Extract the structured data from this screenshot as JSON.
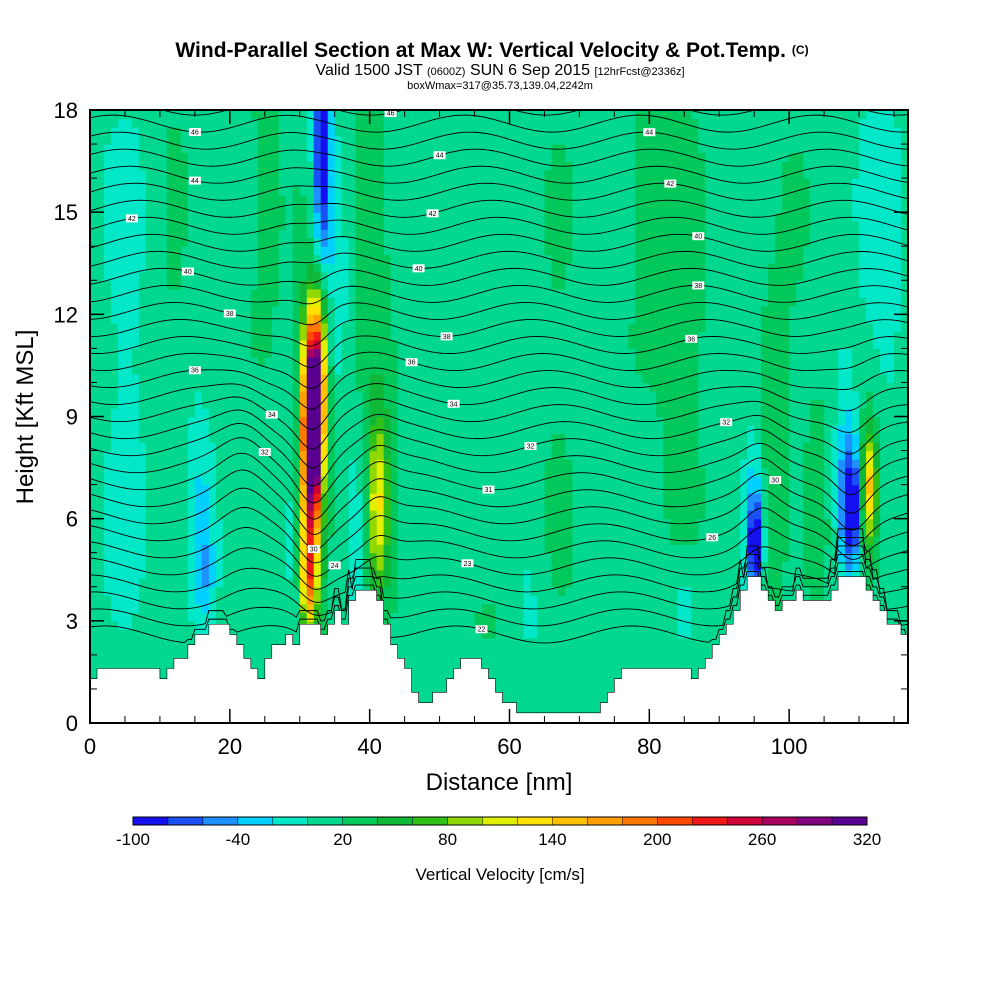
{
  "chart_data": {
    "type": "heatmap",
    "title": "Wind-Parallel Section at Max W: Vertical Velocity & Pot.Temp.",
    "title_mark": "(C)",
    "subtitle_main_a": "Valid 1500 JST",
    "subtitle_small_a": "(0600Z)",
    "subtitle_main_b": "SUN 6 Sep 2015",
    "subtitle_small_b": "[12hrFcst@2336z]",
    "subtitle_line3": "boxWmax=317@35.73,139.04,2242m",
    "xlabel": "Distance [nm]",
    "ylabel": "Height [Kft MSL]",
    "xlim": [
      0,
      117
    ],
    "ylim": [
      0,
      18
    ],
    "x_ticks": [
      0,
      20,
      40,
      60,
      80,
      100
    ],
    "y_ticks": [
      0,
      3,
      6,
      9,
      12,
      15,
      18
    ],
    "x_tick_labels": [
      "0",
      "20",
      "40",
      "60",
      "80",
      "100"
    ],
    "y_tick_labels": [
      "0",
      "3",
      "6",
      "9",
      "12",
      "15",
      "18"
    ],
    "colorbar": {
      "label": "Vertical Velocity [cm/s]",
      "min": -100,
      "max": 320,
      "step": 20,
      "tick_values": [
        "-100",
        "-40",
        "20",
        "80",
        "140",
        "200",
        "260",
        "320"
      ],
      "colors": [
        "#1410ef",
        "#1a4ff5",
        "#1e90ff",
        "#00d0ff",
        "#00e8c8",
        "#00d890",
        "#00c85a",
        "#10b838",
        "#30c018",
        "#90d800",
        "#e0f000",
        "#ffe000",
        "#ffc000",
        "#ffa000",
        "#ff7800",
        "#ff4800",
        "#f01818",
        "#d00038",
        "#a80060",
        "#800080",
        "#5a0090"
      ]
    },
    "terrain_kft": [
      [
        0,
        1.3
      ],
      [
        1,
        1.3
      ],
      [
        1,
        1.6
      ],
      [
        10,
        1.6
      ],
      [
        10,
        1.3
      ],
      [
        11,
        1.3
      ],
      [
        11,
        1.6
      ],
      [
        12,
        1.6
      ],
      [
        12,
        1.9
      ],
      [
        14,
        1.9
      ],
      [
        14,
        2.3
      ],
      [
        15,
        2.3
      ],
      [
        15,
        2.6
      ],
      [
        17,
        2.6
      ],
      [
        17,
        2.9
      ],
      [
        20,
        2.9
      ],
      [
        20,
        2.6
      ],
      [
        21,
        2.6
      ],
      [
        21,
        2.3
      ],
      [
        22,
        2.3
      ],
      [
        22,
        1.9
      ],
      [
        23,
        1.9
      ],
      [
        23,
        1.6
      ],
      [
        24,
        1.6
      ],
      [
        24,
        1.3
      ],
      [
        25,
        1.3
      ],
      [
        25,
        1.9
      ],
      [
        26,
        1.9
      ],
      [
        26,
        2.3
      ],
      [
        28,
        2.3
      ],
      [
        28,
        2.6
      ],
      [
        29,
        2.6
      ],
      [
        29,
        2.3
      ],
      [
        30,
        2.3
      ],
      [
        30,
        2.9
      ],
      [
        33,
        2.9
      ],
      [
        33,
        2.6
      ],
      [
        34,
        2.6
      ],
      [
        34,
        2.9
      ],
      [
        35,
        2.9
      ],
      [
        35,
        3.3
      ],
      [
        36,
        3.3
      ],
      [
        36,
        2.9
      ],
      [
        37,
        2.9
      ],
      [
        37,
        3.6
      ],
      [
        38,
        3.6
      ],
      [
        38,
        3.9
      ],
      [
        41,
        3.9
      ],
      [
        41,
        3.6
      ],
      [
        42,
        3.6
      ],
      [
        42,
        2.9
      ],
      [
        43,
        2.9
      ],
      [
        43,
        2.3
      ],
      [
        44,
        2.3
      ],
      [
        44,
        1.9
      ],
      [
        45,
        1.9
      ],
      [
        45,
        1.6
      ],
      [
        46,
        1.6
      ],
      [
        46,
        0.9
      ],
      [
        47,
        0.9
      ],
      [
        47,
        0.6
      ],
      [
        49,
        0.6
      ],
      [
        49,
        0.9
      ],
      [
        51,
        0.9
      ],
      [
        51,
        1.3
      ],
      [
        52,
        1.3
      ],
      [
        52,
        1.6
      ],
      [
        53,
        1.6
      ],
      [
        53,
        1.9
      ],
      [
        56,
        1.9
      ],
      [
        56,
        1.6
      ],
      [
        57,
        1.6
      ],
      [
        57,
        1.3
      ],
      [
        58,
        1.3
      ],
      [
        58,
        0.9
      ],
      [
        59,
        0.9
      ],
      [
        59,
        0.6
      ],
      [
        61,
        0.6
      ],
      [
        61,
        0.3
      ],
      [
        73,
        0.3
      ],
      [
        73,
        0.6
      ],
      [
        74,
        0.6
      ],
      [
        74,
        0.9
      ],
      [
        75,
        0.9
      ],
      [
        75,
        1.3
      ],
      [
        76,
        1.3
      ],
      [
        76,
        1.6
      ],
      [
        86,
        1.6
      ],
      [
        86,
        1.3
      ],
      [
        87,
        1.3
      ],
      [
        87,
        1.6
      ],
      [
        88,
        1.6
      ],
      [
        88,
        1.9
      ],
      [
        89,
        1.9
      ],
      [
        89,
        2.3
      ],
      [
        90,
        2.3
      ],
      [
        90,
        2.6
      ],
      [
        91,
        2.6
      ],
      [
        91,
        2.9
      ],
      [
        92,
        2.9
      ],
      [
        92,
        3.3
      ],
      [
        93,
        3.3
      ],
      [
        93,
        3.9
      ],
      [
        94,
        3.9
      ],
      [
        94,
        4.3
      ],
      [
        96,
        4.3
      ],
      [
        96,
        3.9
      ],
      [
        97,
        3.9
      ],
      [
        97,
        3.6
      ],
      [
        98,
        3.6
      ],
      [
        98,
        3.3
      ],
      [
        99,
        3.3
      ],
      [
        99,
        3.6
      ],
      [
        101,
        3.6
      ],
      [
        101,
        3.9
      ],
      [
        102,
        3.9
      ],
      [
        102,
        3.6
      ],
      [
        106,
        3.6
      ],
      [
        106,
        3.9
      ],
      [
        107,
        3.9
      ],
      [
        107,
        4.3
      ],
      [
        111,
        4.3
      ],
      [
        111,
        3.9
      ],
      [
        112,
        3.9
      ],
      [
        112,
        3.6
      ],
      [
        113,
        3.6
      ],
      [
        113,
        3.3
      ],
      [
        114,
        3.3
      ],
      [
        114,
        2.9
      ],
      [
        116,
        2.9
      ],
      [
        116,
        2.6
      ],
      [
        117,
        2.6
      ],
      [
        117,
        0
      ]
    ],
    "vertical_velocity_features": [
      {
        "x": 32,
        "y": 8.7,
        "sx": 0.9,
        "sy": 1.4,
        "w": 300
      },
      {
        "x": 31.6,
        "y": 6.5,
        "sx": 1.0,
        "sy": 2.2,
        "w": 150
      },
      {
        "x": 32.2,
        "y": 10.2,
        "sx": 1.0,
        "sy": 1.4,
        "w": 170
      },
      {
        "x": 32.6,
        "y": 11.8,
        "sx": 1.3,
        "sy": 1.2,
        "w": 60
      },
      {
        "x": 31.2,
        "y": 4.2,
        "sx": 0.6,
        "sy": 0.9,
        "w": 100
      },
      {
        "x": 31,
        "y": 7.5,
        "sx": 2.0,
        "sy": 4.5,
        "w": 40
      },
      {
        "x": 41.2,
        "y": 6.4,
        "sx": 1.0,
        "sy": 1.7,
        "w": 90
      },
      {
        "x": 41.5,
        "y": 6.0,
        "sx": 2.0,
        "sy": 3.0,
        "w": 30
      },
      {
        "x": 33.2,
        "y": 17.0,
        "sx": 0.8,
        "sy": 1.8,
        "w": -95
      },
      {
        "x": 33.5,
        "y": 14.5,
        "sx": 1.2,
        "sy": 3.5,
        "w": -45
      },
      {
        "x": 35.8,
        "y": 13.0,
        "sx": 0.8,
        "sy": 2.0,
        "w": -25
      },
      {
        "x": 29.0,
        "y": 5.8,
        "sx": 1.0,
        "sy": 2.5,
        "w": -35
      },
      {
        "x": 38.0,
        "y": 5.5,
        "sx": 1.0,
        "sy": 2.5,
        "w": -25
      },
      {
        "x": 15.8,
        "y": 5.9,
        "sx": 1.4,
        "sy": 1.8,
        "w": -40
      },
      {
        "x": 16.5,
        "y": 4.2,
        "sx": 1.0,
        "sy": 1.0,
        "w": -30
      },
      {
        "x": 109,
        "y": 6.3,
        "sx": 1.0,
        "sy": 1.2,
        "w": -110
      },
      {
        "x": 108.5,
        "y": 7.3,
        "sx": 1.3,
        "sy": 2.2,
        "w": -45
      },
      {
        "x": 95.2,
        "y": 5.3,
        "sx": 0.7,
        "sy": 1.0,
        "w": -90
      },
      {
        "x": 95.0,
        "y": 6.0,
        "sx": 1.0,
        "sy": 2.0,
        "w": -40
      },
      {
        "x": 111.4,
        "y": 6.9,
        "sx": 0.8,
        "sy": 1.0,
        "w": 110
      },
      {
        "x": 111.0,
        "y": 6.5,
        "sx": 1.5,
        "sy": 2.5,
        "w": 45
      },
      {
        "x": 97.5,
        "y": 7.0,
        "sx": 1.5,
        "sy": 3.5,
        "w": 30
      },
      {
        "x": 104.0,
        "y": 7.5,
        "sx": 1.5,
        "sy": 3.5,
        "w": 20
      },
      {
        "x": 85.0,
        "y": 11.5,
        "sx": 2.5,
        "sy": 5.0,
        "w": 25
      },
      {
        "x": 80.0,
        "y": 15.5,
        "sx": 2.5,
        "sy": 4.0,
        "w": 20
      },
      {
        "x": 40.0,
        "y": 15.0,
        "sx": 2.5,
        "sy": 4.0,
        "w": 22
      },
      {
        "x": 25.0,
        "y": 16.0,
        "sx": 2.0,
        "sy": 4.0,
        "w": 20
      },
      {
        "x": 67.0,
        "y": 10.0,
        "sx": 2.5,
        "sy": 6.0,
        "w": 15
      },
      {
        "x": 63.0,
        "y": 3.4,
        "sx": 1.5,
        "sy": 1.3,
        "w": -15
      },
      {
        "x": 85.0,
        "y": 3.6,
        "sx": 1.2,
        "sy": 1.0,
        "w": -25
      },
      {
        "x": 5.0,
        "y": 10.0,
        "sx": 2.5,
        "sy": 6.0,
        "w": -15
      },
      {
        "x": 12.0,
        "y": 14.0,
        "sx": 1.5,
        "sy": 4.0,
        "w": 15
      },
      {
        "x": 100.0,
        "y": 14.0,
        "sx": 2.0,
        "sy": 3.0,
        "w": 15
      },
      {
        "x": 113.0,
        "y": 13.5,
        "sx": 2.0,
        "sy": 4.0,
        "w": -25
      },
      {
        "x": 57.0,
        "y": 3.2,
        "sx": 3.0,
        "sy": 1.0,
        "w": 15
      }
    ],
    "potential_temperature_contours": [
      {
        "level_idx": 0,
        "y0": 2.6,
        "label": "22",
        "label_x": 56
      },
      {
        "level_idx": 1,
        "y0": 3.1
      },
      {
        "level_idx": 2,
        "y0": 3.6
      },
      {
        "level_idx": 3,
        "y0": 4.1
      },
      {
        "level_idx": 4,
        "y0": 4.6,
        "label": "23",
        "label_x": 54
      },
      {
        "level_idx": 5,
        "y0": 5.1,
        "label": "24",
        "label_x": 35
      },
      {
        "level_idx": 6,
        "y0": 5.6,
        "label": "26",
        "label_x": 89
      },
      {
        "level_idx": 7,
        "y0": 6.1,
        "label": "30",
        "label_x": 32
      },
      {
        "level_idx": 8,
        "y0": 6.6,
        "label": "30",
        "label_x": 98
      },
      {
        "level_idx": 9,
        "y0": 7.1,
        "label": "31",
        "label_x": 57
      },
      {
        "level_idx": 10,
        "y0": 7.6,
        "label": "32",
        "label_x": 25
      },
      {
        "level_idx": 11,
        "y0": 8.1,
        "label": "32",
        "label_x": 63
      },
      {
        "level_idx": 12,
        "y0": 8.6,
        "label": "32",
        "label_x": 91
      },
      {
        "level_idx": 13,
        "y0": 9.1,
        "label": "34",
        "label_x": 26
      },
      {
        "level_idx": 14,
        "y0": 9.6,
        "label": "34",
        "label_x": 52
      },
      {
        "level_idx": 15,
        "y0": 10.1,
        "label": "36",
        "label_x": 15
      },
      {
        "level_idx": 16,
        "y0": 10.6,
        "label": "36",
        "label_x": 46
      },
      {
        "level_idx": 17,
        "y0": 11.1,
        "label": "36",
        "label_x": 86
      },
      {
        "level_idx": 18,
        "y0": 11.6,
        "label": "38",
        "label_x": 51
      },
      {
        "level_idx": 19,
        "y0": 12.1,
        "label": "38",
        "label_x": 20
      },
      {
        "level_idx": 20,
        "y0": 12.6,
        "label": "38",
        "label_x": 87
      },
      {
        "level_idx": 21,
        "y0": 13.1,
        "label": "40",
        "label_x": 14
      },
      {
        "level_idx": 22,
        "y0": 13.6,
        "label": "40",
        "label_x": 47
      },
      {
        "level_idx": 23,
        "y0": 14.1,
        "label": "40",
        "label_x": 87
      },
      {
        "level_idx": 24,
        "y0": 14.6,
        "label": "42",
        "label_x": 6
      },
      {
        "level_idx": 25,
        "y0": 15.1,
        "label": "42",
        "label_x": 49
      },
      {
        "level_idx": 26,
        "y0": 15.6,
        "label": "42",
        "label_x": 83
      },
      {
        "level_idx": 27,
        "y0": 16.1,
        "label": "44",
        "label_x": 15
      },
      {
        "level_idx": 28,
        "y0": 16.6,
        "label": "44",
        "label_x": 50
      },
      {
        "level_idx": 29,
        "y0": 17.1,
        "label": "44",
        "label_x": 80
      },
      {
        "level_idx": 30,
        "y0": 17.6,
        "label": "46",
        "label_x": 15
      },
      {
        "level_idx": 31,
        "y0": 18.1,
        "label": "46",
        "label_x": 43
      },
      {
        "level_idx": 32,
        "y0": 18.6,
        "label": "46",
        "label_x": 82
      },
      {
        "level_idx": 33,
        "y0": 19.1
      }
    ]
  }
}
